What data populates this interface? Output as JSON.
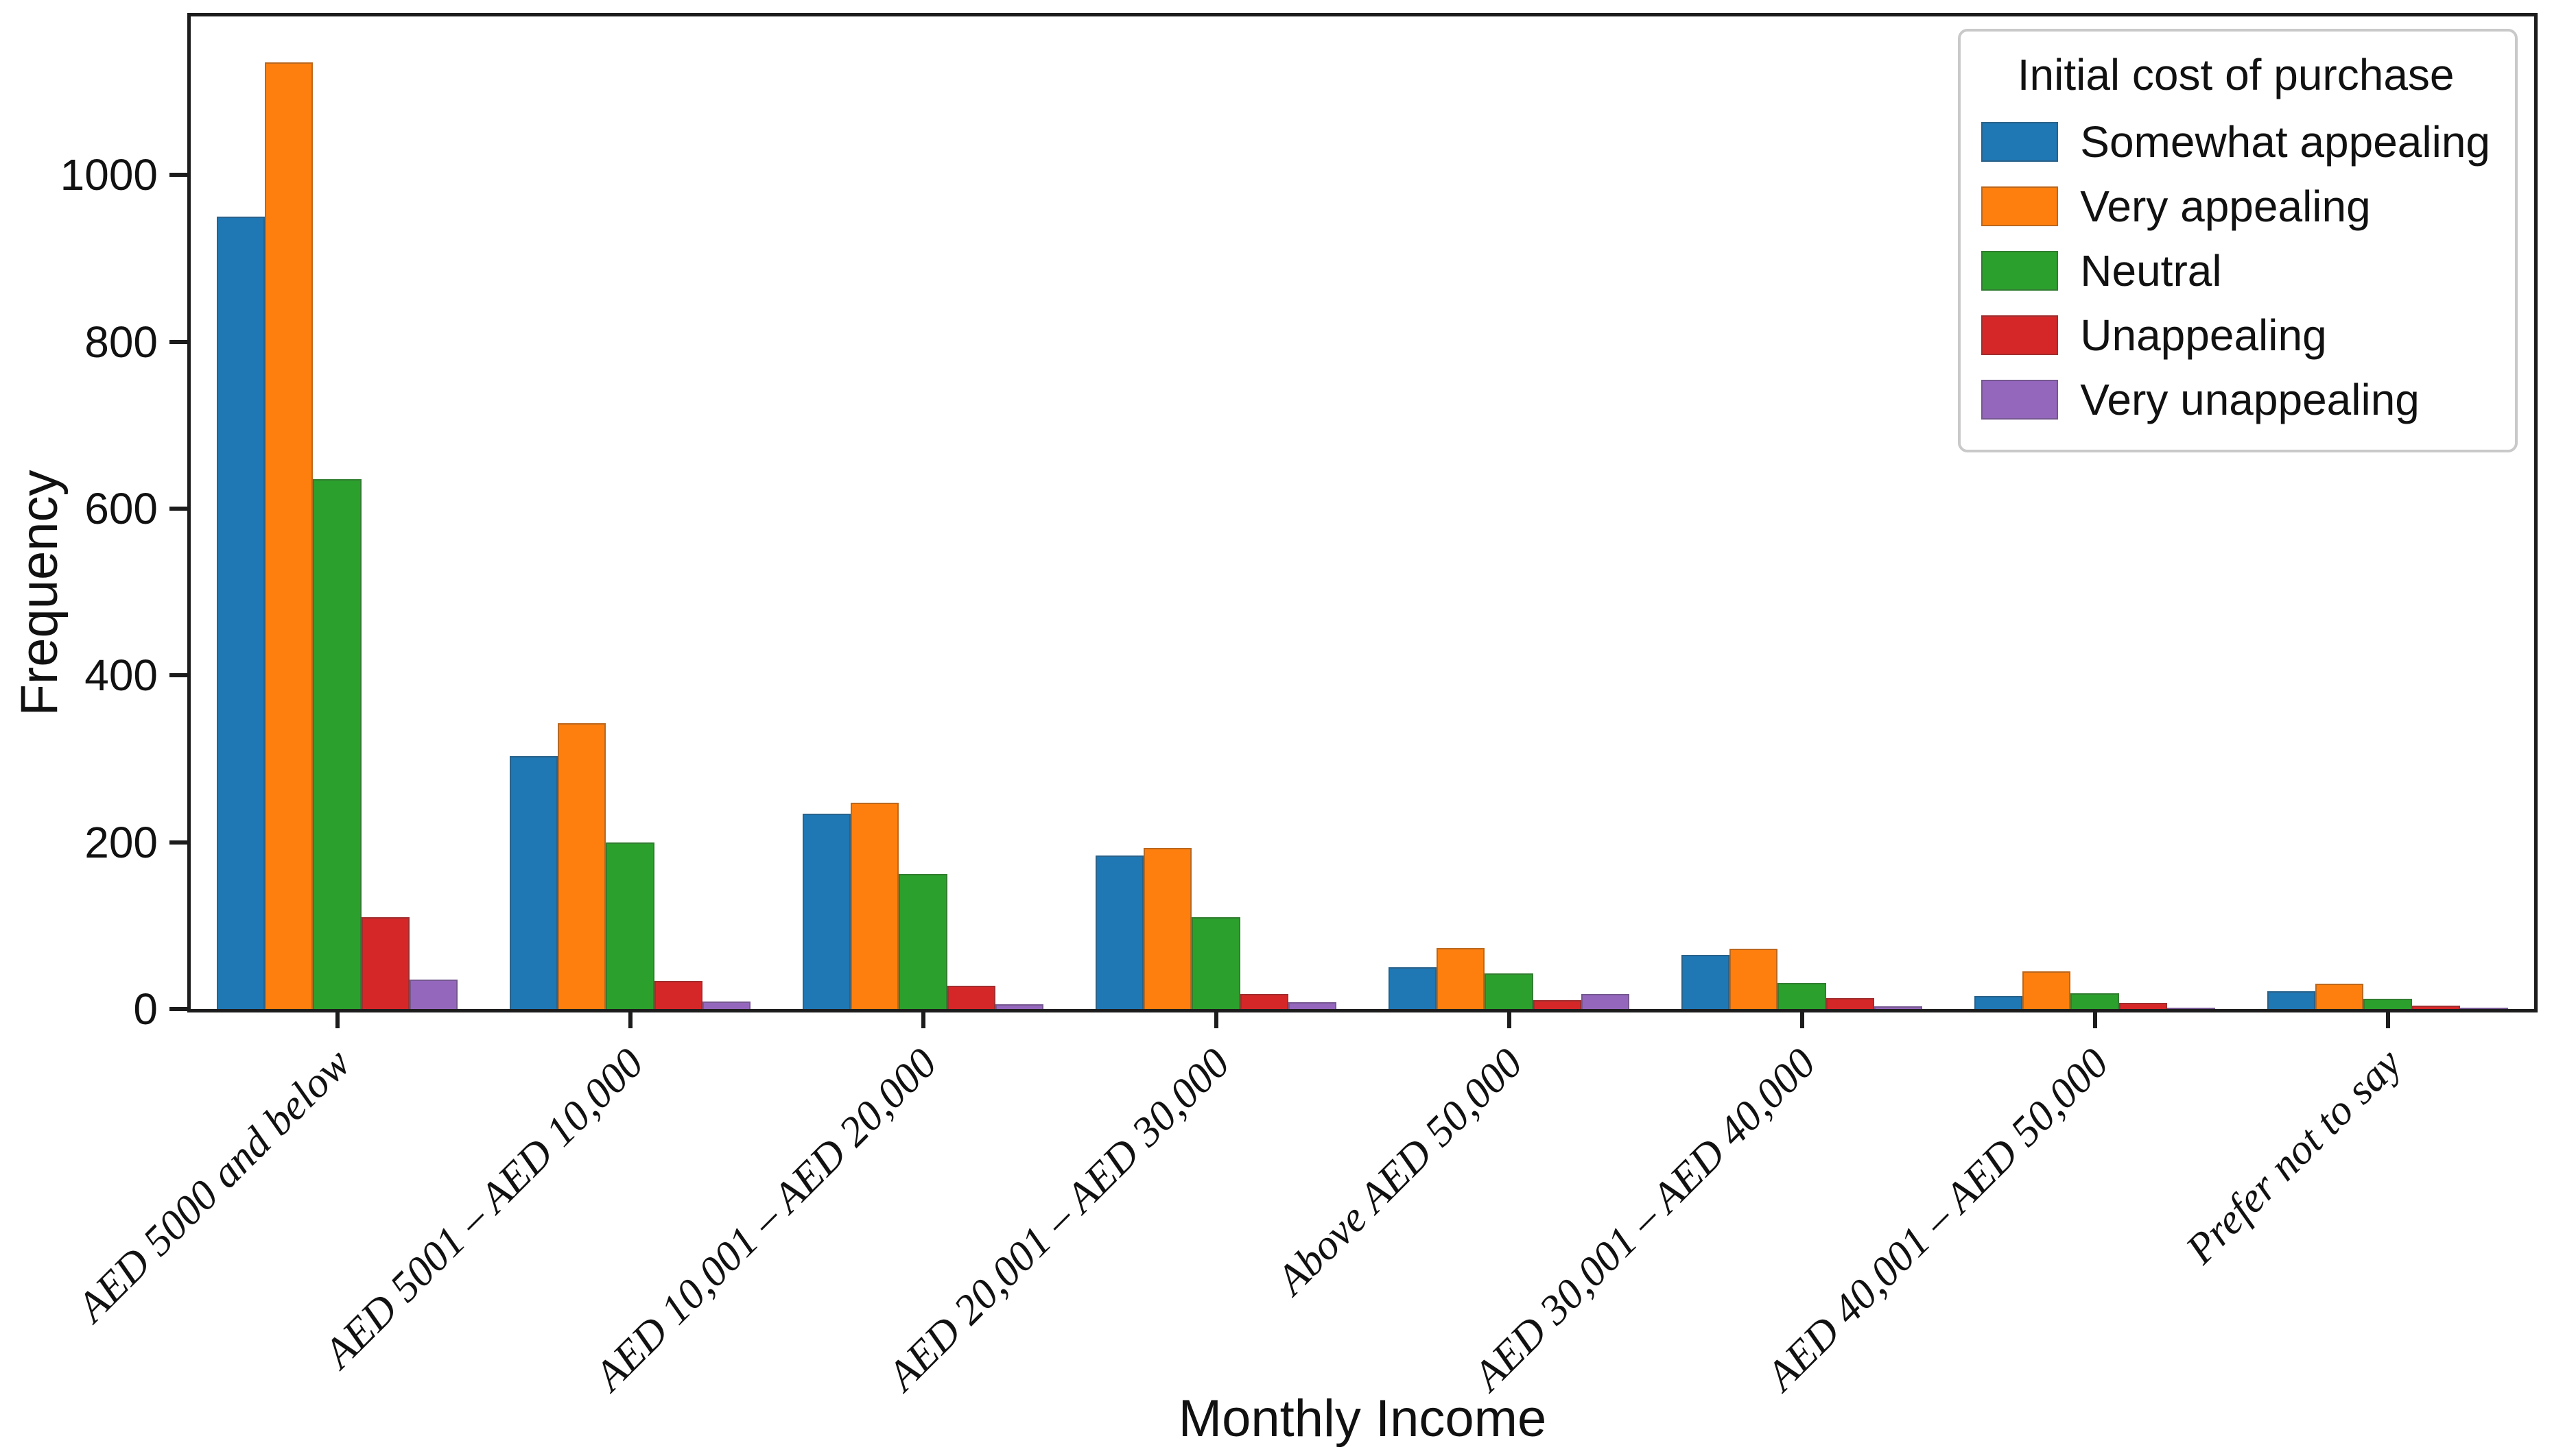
{
  "chart_data": {
    "type": "bar",
    "grouped": true,
    "title": "",
    "xlabel": "Monthly Income",
    "ylabel": "Frequency",
    "categories": [
      "AED 5000 and below",
      "AED 5001 – AED 10,000",
      "AED 10,001 – AED 20,000",
      "AED 20,001 – AED 30,000",
      "Above AED 50,000",
      "AED 30,001 – AED 40,000",
      "AED 40,001 – AED 50,000",
      "Prefer not to say"
    ],
    "series": [
      {
        "name": "Somewhat appealing",
        "color": "#1f77b4",
        "values": [
          950,
          303,
          234,
          184,
          50,
          65,
          16,
          21
        ]
      },
      {
        "name": "Very appealing",
        "color": "#ff7f0e",
        "values": [
          1135,
          343,
          247,
          193,
          73,
          72,
          45,
          30
        ]
      },
      {
        "name": "Neutral",
        "color": "#2ca02c",
        "values": [
          635,
          200,
          162,
          110,
          43,
          31,
          19,
          12
        ]
      },
      {
        "name": "Unappealing",
        "color": "#d62728",
        "values": [
          110,
          34,
          28,
          18,
          11,
          13,
          7,
          4
        ]
      },
      {
        "name": "Very unappealing",
        "color": "#9467bd",
        "values": [
          35,
          9,
          6,
          8,
          18,
          3,
          2,
          2
        ]
      }
    ],
    "ylim": [
      0,
      1190
    ],
    "yticks": [
      0,
      200,
      400,
      600,
      800,
      1000
    ],
    "grid": false,
    "legend": {
      "title": "Initial cost of purchase",
      "position": "upper right"
    },
    "axis_color": "#1c1c1c",
    "background": "#ffffff"
  }
}
